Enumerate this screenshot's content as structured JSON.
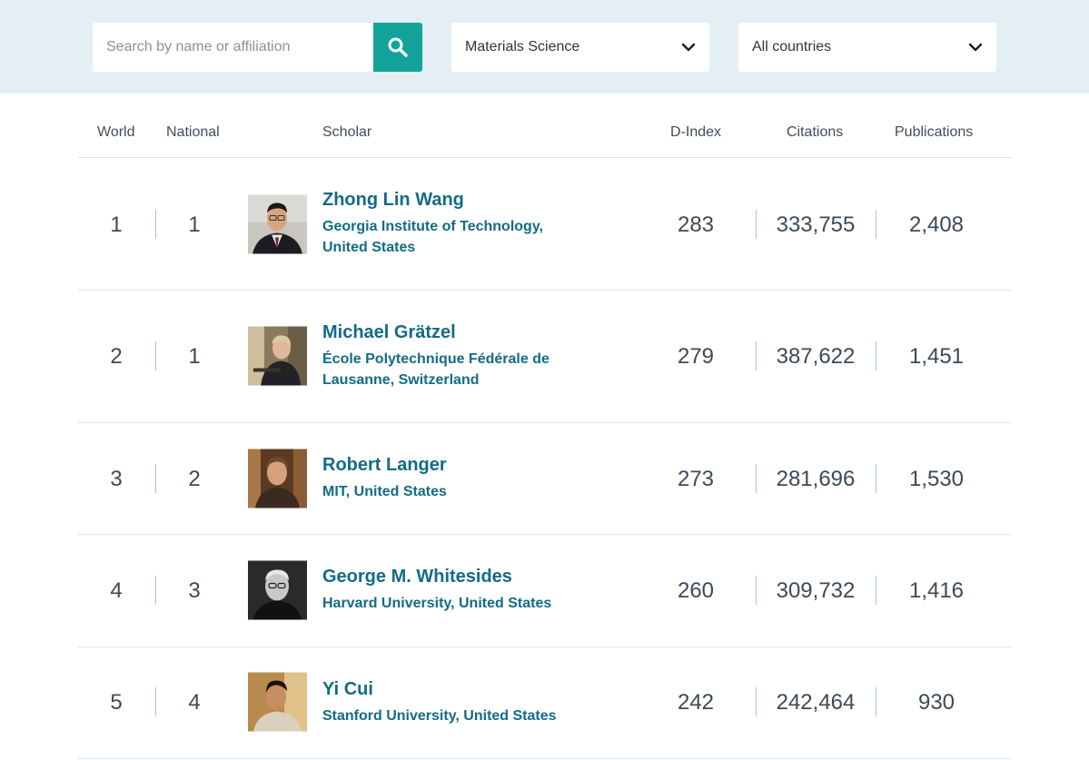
{
  "filters": {
    "search_placeholder": "Search by name or affiliation",
    "discipline": "Materials Science",
    "country": "All countries"
  },
  "table": {
    "headers": {
      "world": "World",
      "national": "National",
      "scholar": "Scholar",
      "dindex": "D-Index",
      "citations": "Citations",
      "publications": "Publications"
    },
    "rows": [
      {
        "world": "1",
        "national": "1",
        "name": "Zhong Lin Wang",
        "affiliation": "Georgia Institute of Technology, United States",
        "dindex": "283",
        "citations": "333,755",
        "publications": "2,408"
      },
      {
        "world": "2",
        "national": "1",
        "name": "Michael Grätzel",
        "affiliation": "École Polytechnique Fédérale de Lausanne, Switzerland",
        "dindex": "279",
        "citations": "387,622",
        "publications": "1,451"
      },
      {
        "world": "3",
        "national": "2",
        "name": "Robert Langer",
        "affiliation": "MIT, United States",
        "dindex": "273",
        "citations": "281,696",
        "publications": "1,530"
      },
      {
        "world": "4",
        "national": "3",
        "name": "George M. Whitesides",
        "affiliation": "Harvard University, United States",
        "dindex": "260",
        "citations": "309,732",
        "publications": "1,416"
      },
      {
        "world": "5",
        "national": "4",
        "name": "Yi Cui",
        "affiliation": "Stanford University, United States",
        "dindex": "242",
        "citations": "242,464",
        "publications": "930"
      }
    ]
  },
  "colors": {
    "accent": "#14a39a",
    "link": "#136b86",
    "filter_bg": "#e3eff4"
  },
  "icons": {
    "search": "search-icon",
    "dropdown": "chevron-down-icon"
  }
}
